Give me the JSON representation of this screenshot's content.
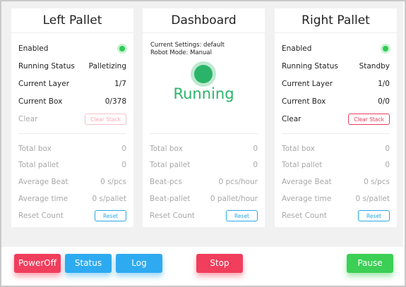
{
  "left": {
    "title": "Left Pallet",
    "enabled_label": "Enabled",
    "running_status_label": "Running Status",
    "running_status_value": "Palletizing",
    "current_layer_label": "Current Layer",
    "current_layer_value": "1/7",
    "current_box_label": "Current Box",
    "current_box_value": "0/378",
    "clear_label": "Clear",
    "clear_button": "Clear Stack",
    "total_box_label": "Total box",
    "total_box_value": "0",
    "total_pallet_label": "Total pallet",
    "total_pallet_value": "0",
    "average_beat_label": "Average Beat",
    "average_beat_value": "0 s/pcs",
    "average_time_label": "Average time",
    "average_time_value": "0 s/pallet",
    "reset_count_label": "Reset Count",
    "reset_button": "Reset"
  },
  "dashboard": {
    "title": "Dashboard",
    "current_settings": "Current Settings: default",
    "robot_mode": "Robot Mode: Manual",
    "state": "Running",
    "total_box_label": "Total box",
    "total_box_value": "0",
    "total_pallet_label": "Total pallet",
    "total_pallet_value": "0",
    "beat_pcs_label": "Beat-pcs",
    "beat_pcs_value": "0 pcs/hour",
    "beat_pallet_label": "Beat-pallet",
    "beat_pallet_value": "0 pallet/hour",
    "reset_count_label": "Reset Count",
    "reset_button": "Reset"
  },
  "right": {
    "title": "Right Pallet",
    "enabled_label": "Enabled",
    "running_status_label": "Running Status",
    "running_status_value": "Standby",
    "current_layer_label": "Current Layer",
    "current_layer_value": "1/0",
    "current_box_label": "Current Box",
    "current_box_value": "0/0",
    "clear_label": "Clear",
    "clear_button": "Clear Stack",
    "total_box_label": "Total box",
    "total_box_value": "0",
    "total_pallet_label": "Total pallet",
    "total_pallet_value": "0",
    "average_beat_label": "Average Beat",
    "average_beat_value": "0 s/pcs",
    "average_time_label": "Average time",
    "average_time_value": "0 s/pallet",
    "reset_count_label": "Reset Count",
    "reset_button": "Reset"
  },
  "footer": {
    "poweroff": "PowerOff",
    "status": "Status",
    "log": "Log",
    "stop": "Stop",
    "pause": "Pause"
  },
  "colors": {
    "running": "#2bb469",
    "danger": "#f03e5c",
    "primary": "#2eaaf0",
    "success": "#3ccf55",
    "enabled_dot": "#2ecc53"
  },
  "icons": {
    "enabled_indicator": "status-dot-icon",
    "running_indicator": "status-dot-icon"
  }
}
